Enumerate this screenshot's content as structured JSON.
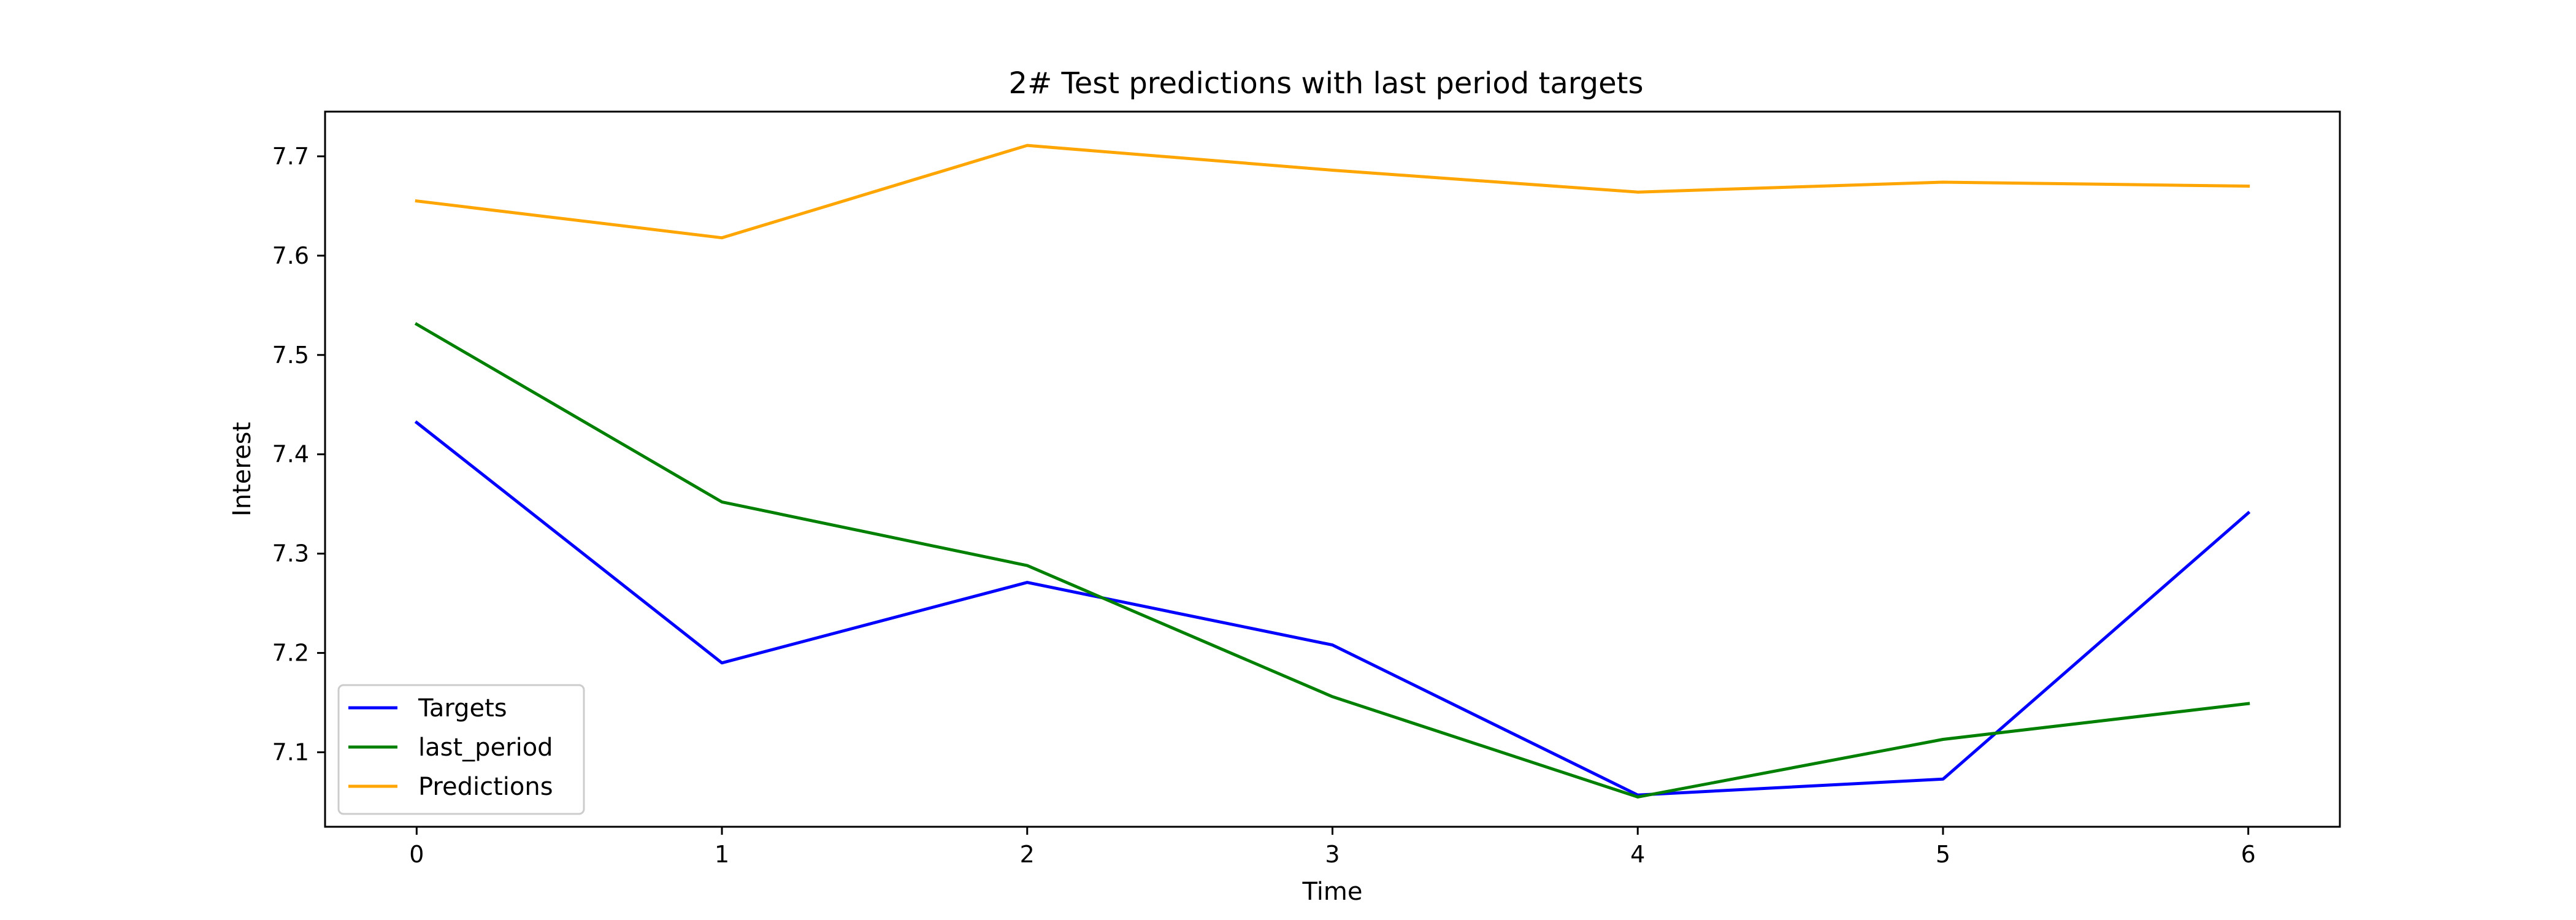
{
  "chart_data": {
    "type": "line",
    "title": "2# Test predictions with last period targets",
    "xlabel": "Time",
    "ylabel": "Interest",
    "x": [
      0,
      1,
      2,
      3,
      4,
      5,
      6
    ],
    "xlim": [
      -0.3,
      6.3
    ],
    "ylim": [
      7.025,
      7.745
    ],
    "xticks": [
      0,
      1,
      2,
      3,
      4,
      5,
      6
    ],
    "yticks": [
      7.1,
      7.2,
      7.3,
      7.4,
      7.5,
      7.6,
      7.7
    ],
    "grid": false,
    "legend_position": "lower-left",
    "series": [
      {
        "name": "Targets",
        "color": "#0000ff",
        "values": [
          7.432,
          7.19,
          7.271,
          7.208,
          7.057,
          7.073,
          7.341
        ]
      },
      {
        "name": "last_period",
        "color": "#008000",
        "values": [
          7.531,
          7.352,
          7.288,
          7.156,
          7.055,
          7.113,
          7.149
        ]
      },
      {
        "name": "Predictions",
        "color": "#ffa500",
        "values": [
          7.655,
          7.618,
          7.711,
          7.686,
          7.664,
          7.674,
          7.67
        ]
      }
    ]
  }
}
